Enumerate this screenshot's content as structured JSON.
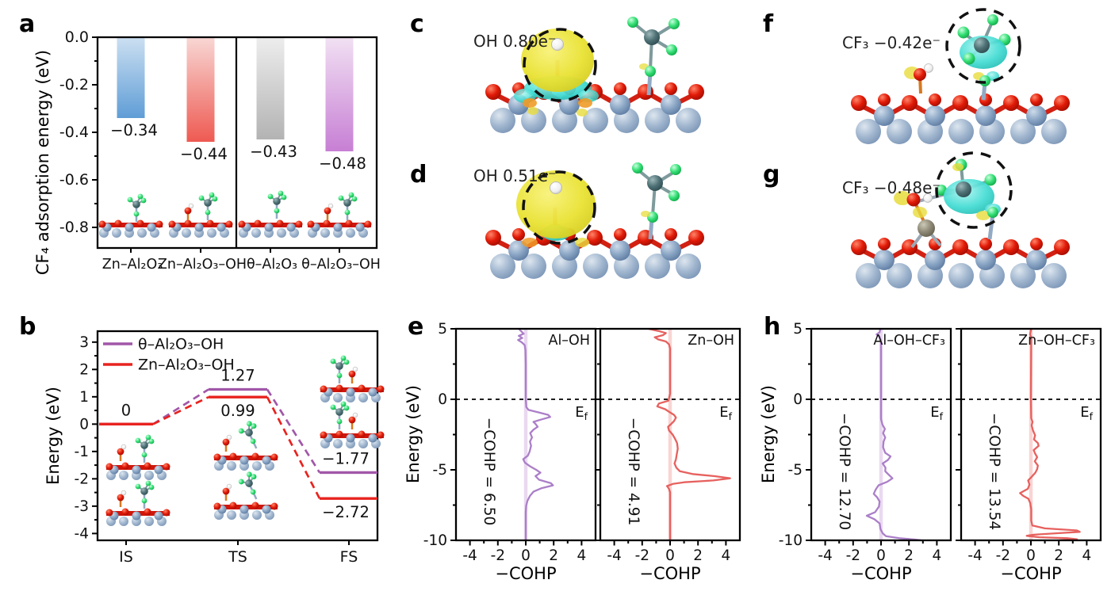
{
  "panel_labels": {
    "a": "a",
    "b": "b",
    "c": "c",
    "d": "d",
    "e": "e",
    "f": "f",
    "g": "g",
    "h": "h"
  },
  "molecule_panels": {
    "c": {
      "label": "OH 0.80e⁻"
    },
    "d": {
      "label": "OH 0.51e⁻"
    },
    "f": {
      "label": "CF₃ −0.42e⁻"
    },
    "g": {
      "label": "CF₃ −0.48e⁻"
    }
  },
  "chart_data": [
    {
      "id": "a",
      "type": "bar",
      "ylabel": "CF₄ adsorption energy (eV)",
      "ylim": [
        0,
        -0.89
      ],
      "yticks": [
        0,
        -0.2,
        -0.4,
        -0.6,
        -0.8
      ],
      "ytick_labels": [
        "0.0",
        "-0.2",
        "-0.4",
        "-0.6",
        "-0.8"
      ],
      "yticks_minor": [
        -0.1,
        -0.3,
        -0.5,
        -0.7
      ],
      "categories": [
        "Zn–Al₂O₃",
        "Zn–Al₂O₃–OH",
        "θ–Al₂O₃",
        "θ–Al₂O₃–OH"
      ],
      "values": [
        -0.34,
        -0.44,
        -0.43,
        -0.48
      ],
      "value_labels": [
        "−0.34",
        "−0.44",
        "−0.43",
        "−0.48"
      ],
      "bar_gradients": [
        [
          "#cbdff1",
          "#5f9dd6"
        ],
        [
          "#f8d6d3",
          "#ee5a52"
        ],
        [
          "#ededed",
          "#b3b3b3"
        ],
        [
          "#f1e0f3",
          "#c77fd4"
        ]
      ],
      "group_divider_after": 2
    },
    {
      "id": "b",
      "type": "line",
      "subtype": "energy-profile",
      "ylabel": "Energy (eV)",
      "ylim": [
        -4.25,
        3.4
      ],
      "yticks": [
        3,
        2,
        1,
        0,
        -1,
        -2,
        -3,
        -4
      ],
      "yticks_minor": [
        2.5,
        1.5,
        0.5,
        -0.5,
        -1.5,
        -2.5,
        -3.5
      ],
      "categories": [
        "IS",
        "TS",
        "FS"
      ],
      "series": [
        {
          "name": "θ–Al₂O₃–OH",
          "color": "#a157a8",
          "values": [
            0,
            1.27,
            -1.77
          ]
        },
        {
          "name": "Zn–Al₂O₃–OH",
          "color": "#e8231f",
          "values": [
            0,
            0.99,
            -2.72
          ]
        }
      ],
      "annotations": [
        {
          "text": "0",
          "state": 0,
          "series": 1,
          "pos": "above"
        },
        {
          "text": "1.27",
          "state": 1,
          "series": 0,
          "pos": "above"
        },
        {
          "text": "0.99",
          "state": 1,
          "series": 1,
          "pos": "below"
        },
        {
          "text": "−1.77",
          "state": 2,
          "series": 0,
          "pos": "above"
        },
        {
          "text": "−2.72",
          "state": 2,
          "series": 1,
          "pos": "below"
        }
      ],
      "legend_position": "top-left"
    },
    {
      "id": "e",
      "type": "line",
      "subtype": "cohp",
      "ylabel": "Energy (eV)",
      "xlabel": "−COHP",
      "ylim": [
        5,
        -10
      ],
      "xlim": [
        -5,
        5
      ],
      "yticks": [
        5,
        0,
        -5,
        -10
      ],
      "yticks_minor": [
        2.5,
        -2.5,
        -7.5
      ],
      "xticks": [
        -4,
        -2,
        0,
        2,
        4
      ],
      "xticks_minor": [
        -3,
        -1,
        1,
        3
      ],
      "fermi": {
        "main": "E",
        "sub": "f"
      },
      "subplots": [
        {
          "title": "Al–OH",
          "integral": "−COHP = 6.50",
          "color": "#ab7fc8",
          "band": "#ead9f1",
          "points": [
            [
              5,
              -0.5
            ],
            [
              4.8,
              -0.3
            ],
            [
              4.65,
              -0.15
            ],
            [
              4.5,
              -0.5
            ],
            [
              4.35,
              -0.25
            ],
            [
              4.2,
              -0.55
            ],
            [
              4.05,
              -0.3
            ],
            [
              3.85,
              -0.08
            ],
            [
              3.5,
              -0.02
            ],
            [
              2.5,
              0
            ],
            [
              0,
              0
            ],
            [
              -0.55,
              0.04
            ],
            [
              -0.75,
              0.2
            ],
            [
              -0.95,
              1.0
            ],
            [
              -1.1,
              1.6
            ],
            [
              -1.25,
              1.75
            ],
            [
              -1.45,
              1.05
            ],
            [
              -1.6,
              0.55
            ],
            [
              -1.75,
              0.7
            ],
            [
              -1.95,
              0.85
            ],
            [
              -2.15,
              0.55
            ],
            [
              -2.4,
              0.32
            ],
            [
              -2.7,
              0.45
            ],
            [
              -3.0,
              0.3
            ],
            [
              -3.3,
              0.38
            ],
            [
              -3.7,
              0.28
            ],
            [
              -4.0,
              0.15
            ],
            [
              -4.25,
              -0.18
            ],
            [
              -4.5,
              -0.05
            ],
            [
              -4.75,
              0.3
            ],
            [
              -5.0,
              0.75
            ],
            [
              -5.2,
              1.05
            ],
            [
              -5.45,
              0.7
            ],
            [
              -5.7,
              0.95
            ],
            [
              -5.95,
              1.8
            ],
            [
              -6.1,
              1.95
            ],
            [
              -6.3,
              1.15
            ],
            [
              -6.55,
              0.55
            ],
            [
              -6.85,
              0.3
            ],
            [
              -7.2,
              0.12
            ],
            [
              -7.55,
              0.03
            ],
            [
              -8,
              0
            ],
            [
              -10,
              0
            ]
          ]
        },
        {
          "title": "Zn–OH",
          "integral": "−COHP = 4.91",
          "color": "#e6615e",
          "band": "#f9d4d3",
          "points": [
            [
              5,
              -1.55
            ],
            [
              4.85,
              -0.85
            ],
            [
              4.7,
              -0.3
            ],
            [
              4.55,
              -0.5
            ],
            [
              4.4,
              -1.1
            ],
            [
              4.25,
              -0.85
            ],
            [
              4.1,
              -0.3
            ],
            [
              3.9,
              -0.08
            ],
            [
              3.6,
              0
            ],
            [
              0.4,
              0
            ],
            [
              -0.1,
              -0.12
            ],
            [
              -0.3,
              -0.8
            ],
            [
              -0.5,
              -0.92
            ],
            [
              -0.7,
              -0.35
            ],
            [
              -0.9,
              -0.05
            ],
            [
              -1.1,
              0.28
            ],
            [
              -1.3,
              0.42
            ],
            [
              -1.55,
              0.28
            ],
            [
              -1.75,
              0.08
            ],
            [
              -1.95,
              -0.15
            ],
            [
              -2.2,
              -0.08
            ],
            [
              -2.5,
              0.18
            ],
            [
              -2.8,
              0.35
            ],
            [
              -3.1,
              0.5
            ],
            [
              -3.5,
              0.55
            ],
            [
              -3.9,
              0.48
            ],
            [
              -4.25,
              0.42
            ],
            [
              -4.55,
              0.32
            ],
            [
              -4.85,
              0.45
            ],
            [
              -5.1,
              0.7
            ],
            [
              -5.3,
              1.6
            ],
            [
              -5.45,
              3.2
            ],
            [
              -5.6,
              4.3
            ],
            [
              -5.75,
              3.1
            ],
            [
              -5.88,
              1.0
            ],
            [
              -6.0,
              0.2
            ],
            [
              -6.15,
              -0.22
            ],
            [
              -6.35,
              -0.08
            ],
            [
              -6.6,
              0
            ],
            [
              -10,
              0
            ]
          ]
        }
      ]
    },
    {
      "id": "h",
      "type": "line",
      "subtype": "cohp",
      "ylabel": "Energy (eV)",
      "xlabel": "−COHP",
      "ylim": [
        5,
        -10
      ],
      "xlim": [
        -5,
        5
      ],
      "yticks": [
        5,
        0,
        -5,
        -10
      ],
      "yticks_minor": [
        2.5,
        -2.5,
        -7.5
      ],
      "xticks": [
        -4,
        -2,
        0,
        2,
        4
      ],
      "xticks_minor": [
        -3,
        -1,
        1,
        3
      ],
      "fermi": {
        "main": "E",
        "sub": "f"
      },
      "subplots": [
        {
          "title": "Al–OH–CF₃",
          "integral": "−COHP = 12.70",
          "color": "#ab7fc8",
          "band": "#ead9f1",
          "points": [
            [
              5,
              -0.05
            ],
            [
              4.75,
              -0.1
            ],
            [
              4.6,
              -0.32
            ],
            [
              4.45,
              -0.12
            ],
            [
              4.25,
              -0.04
            ],
            [
              4,
              0
            ],
            [
              -1.4,
              0
            ],
            [
              -1.8,
              0.1
            ],
            [
              -2.1,
              0.28
            ],
            [
              -2.4,
              0.15
            ],
            [
              -2.7,
              0.3
            ],
            [
              -3.0,
              0.18
            ],
            [
              -3.4,
              0.15
            ],
            [
              -3.8,
              0.3
            ],
            [
              -4.05,
              0.68
            ],
            [
              -4.3,
              0.5
            ],
            [
              -4.55,
              0.12
            ],
            [
              -4.85,
              0.32
            ],
            [
              -5.1,
              0.3
            ],
            [
              -5.35,
              0.55
            ],
            [
              -5.6,
              0.82
            ],
            [
              -5.85,
              0.45
            ],
            [
              -6.1,
              -0.18
            ],
            [
              -6.4,
              -0.38
            ],
            [
              -6.7,
              -0.52
            ],
            [
              -6.95,
              -0.28
            ],
            [
              -7.25,
              -0.1
            ],
            [
              -7.6,
              -0.15
            ],
            [
              -8.0,
              -0.42
            ],
            [
              -8.25,
              -1.02
            ],
            [
              -8.5,
              -0.48
            ],
            [
              -8.8,
              -0.1
            ],
            [
              -9.2,
              -0.04
            ],
            [
              -9.5,
              0.12
            ],
            [
              -9.7,
              0.35
            ],
            [
              -9.85,
              1.3
            ],
            [
              -9.95,
              2.5
            ],
            [
              -10,
              2.9
            ]
          ]
        },
        {
          "title": "Zn–OH–CF₃",
          "integral": "−COHP = 13.54",
          "color": "#e6615e",
          "band": "#f9d4d3",
          "points": [
            [
              5,
              0.02
            ],
            [
              4.6,
              -0.06
            ],
            [
              4.4,
              0.02
            ],
            [
              0,
              0
            ],
            [
              -1.35,
              0.02
            ],
            [
              -1.6,
              0.12
            ],
            [
              -1.85,
              0.05
            ],
            [
              -2.2,
              0.15
            ],
            [
              -2.55,
              0.3
            ],
            [
              -2.85,
              0.22
            ],
            [
              -3.1,
              0.5
            ],
            [
              -3.3,
              0.55
            ],
            [
              -3.6,
              0.2
            ],
            [
              -3.85,
              0.3
            ],
            [
              -4.1,
              0.45
            ],
            [
              -4.4,
              0.28
            ],
            [
              -4.7,
              0.5
            ],
            [
              -4.95,
              0.45
            ],
            [
              -5.2,
              0.32
            ],
            [
              -5.5,
              0.05
            ],
            [
              -5.75,
              -0.2
            ],
            [
              -6.05,
              -0.1
            ],
            [
              -6.35,
              -0.22
            ],
            [
              -6.65,
              -0.78
            ],
            [
              -6.85,
              -0.55
            ],
            [
              -7.05,
              -0.18
            ],
            [
              -7.35,
              -0.05
            ],
            [
              -7.8,
              0.02
            ],
            [
              -8.6,
              0.02
            ],
            [
              -8.95,
              0.1
            ],
            [
              -9.15,
              1.0
            ],
            [
              -9.3,
              3.3
            ],
            [
              -9.4,
              3.5
            ],
            [
              -9.5,
              1.8
            ],
            [
              -9.6,
              0.2
            ],
            [
              -9.68,
              -0.3
            ],
            [
              -9.78,
              0.6
            ],
            [
              -9.85,
              2.6
            ],
            [
              -9.92,
              3.3
            ],
            [
              -10,
              2.0
            ]
          ]
        }
      ]
    }
  ]
}
